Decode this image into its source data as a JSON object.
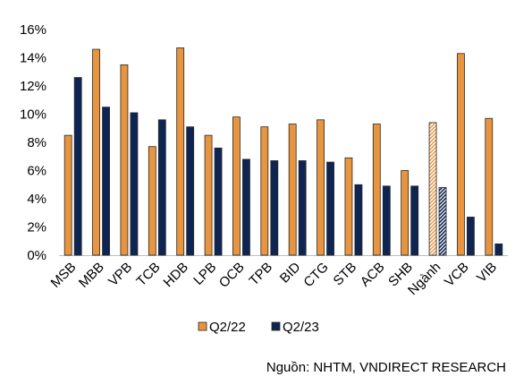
{
  "chart_data": {
    "type": "bar",
    "categories": [
      "MSB",
      "MBB",
      "VPB",
      "TCB",
      "HDB",
      "LPB",
      "OCB",
      "TPB",
      "BID",
      "CTG",
      "STB",
      "ACB",
      "SHB",
      "Ngành",
      "VCB",
      "VIB"
    ],
    "series": [
      {
        "name": "Q2/22",
        "color": "#E8953F",
        "values": [
          8.5,
          14.6,
          13.5,
          7.7,
          14.7,
          8.5,
          9.8,
          9.1,
          9.3,
          9.6,
          6.9,
          9.3,
          6.0,
          9.4,
          14.3,
          9.7
        ]
      },
      {
        "name": "Q2/23",
        "color": "#0E2553",
        "values": [
          12.6,
          10.5,
          10.1,
          9.6,
          9.1,
          7.6,
          6.8,
          6.7,
          6.7,
          6.6,
          5.0,
          4.9,
          4.9,
          4.8,
          2.7,
          0.8
        ]
      }
    ],
    "highlight_category": "Ngành",
    "highlight_style": "hatched",
    "ylim": [
      0,
      16
    ],
    "yticks": [
      "0%",
      "2%",
      "4%",
      "6%",
      "8%",
      "10%",
      "12%",
      "14%",
      "16%"
    ],
    "gridlines": false,
    "legend_position": "bottom"
  },
  "source_text": "Nguồn: NHTM, VNDIRECT RESEARCH"
}
